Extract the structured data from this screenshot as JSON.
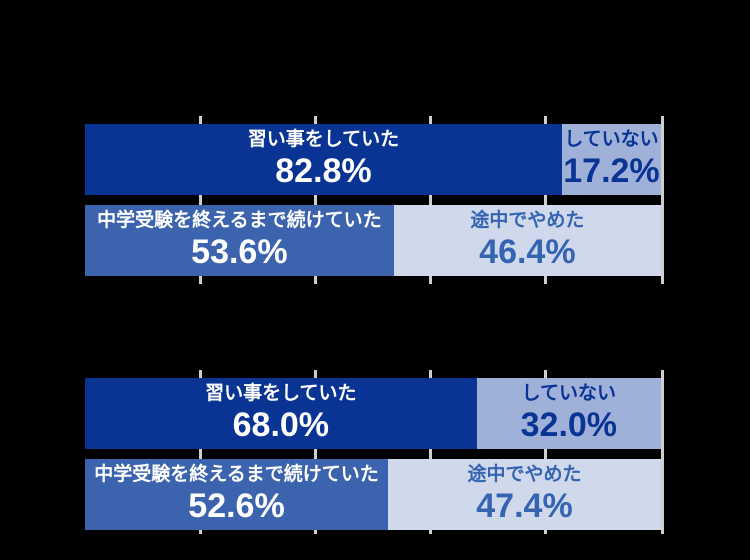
{
  "page": {
    "background_color": "#000000",
    "description_colors": {
      "navy": "#0a3493",
      "periwinkle": "#9fb0d9",
      "medium_blue": "#3c63ad",
      "lavender": "#d0d8eb",
      "gridline_gray": "#cfcfcf",
      "text_white": "#ffffff"
    }
  },
  "chart_data": [
    {
      "type": "bar",
      "orientation": "horizontal",
      "stacked": true,
      "unit": "%",
      "x_axis": {
        "min": 0,
        "max": 100,
        "gridline_step": 20,
        "gridlines": [
          20,
          40,
          60,
          80,
          100
        ]
      },
      "grid_color": "#cfcfcf",
      "rows": [
        {
          "segments": [
            {
              "label": "習い事をしていた",
              "value": 82.8,
              "value_label": "82.8%",
              "color": "#0a3493",
              "text_color": "#ffffff"
            },
            {
              "label": "していない",
              "value": 17.2,
              "value_label": "17.2%",
              "color": "#9fb0d9",
              "text_color": "#0a3493"
            }
          ]
        },
        {
          "segments": [
            {
              "label": "中学受験を終えるまで続けていた",
              "value": 53.6,
              "value_label": "53.6%",
              "color": "#3c63ad",
              "text_color": "#ffffff"
            },
            {
              "label": "途中でやめた",
              "value": 46.4,
              "value_label": "46.4%",
              "color": "#d0d8eb",
              "text_color": "#3565b2"
            }
          ]
        }
      ]
    },
    {
      "type": "bar",
      "orientation": "horizontal",
      "stacked": true,
      "unit": "%",
      "x_axis": {
        "min": 0,
        "max": 100,
        "gridline_step": 20,
        "gridlines": [
          20,
          40,
          60,
          80,
          100
        ]
      },
      "grid_color": "#cfcfcf",
      "rows": [
        {
          "segments": [
            {
              "label": "習い事をしていた",
              "value": 68.0,
              "value_label": "68.0%",
              "color": "#0a3493",
              "text_color": "#ffffff"
            },
            {
              "label": "していない",
              "value": 32.0,
              "value_label": "32.0%",
              "color": "#9fb0d9",
              "text_color": "#0a3493"
            }
          ]
        },
        {
          "segments": [
            {
              "label": "中学受験を終えるまで続けていた",
              "value": 52.6,
              "value_label": "52.6%",
              "color": "#3c63ad",
              "text_color": "#ffffff"
            },
            {
              "label": "途中でやめた",
              "value": 47.4,
              "value_label": "47.4%",
              "color": "#d0d8eb",
              "text_color": "#3565b2"
            }
          ]
        }
      ]
    }
  ]
}
